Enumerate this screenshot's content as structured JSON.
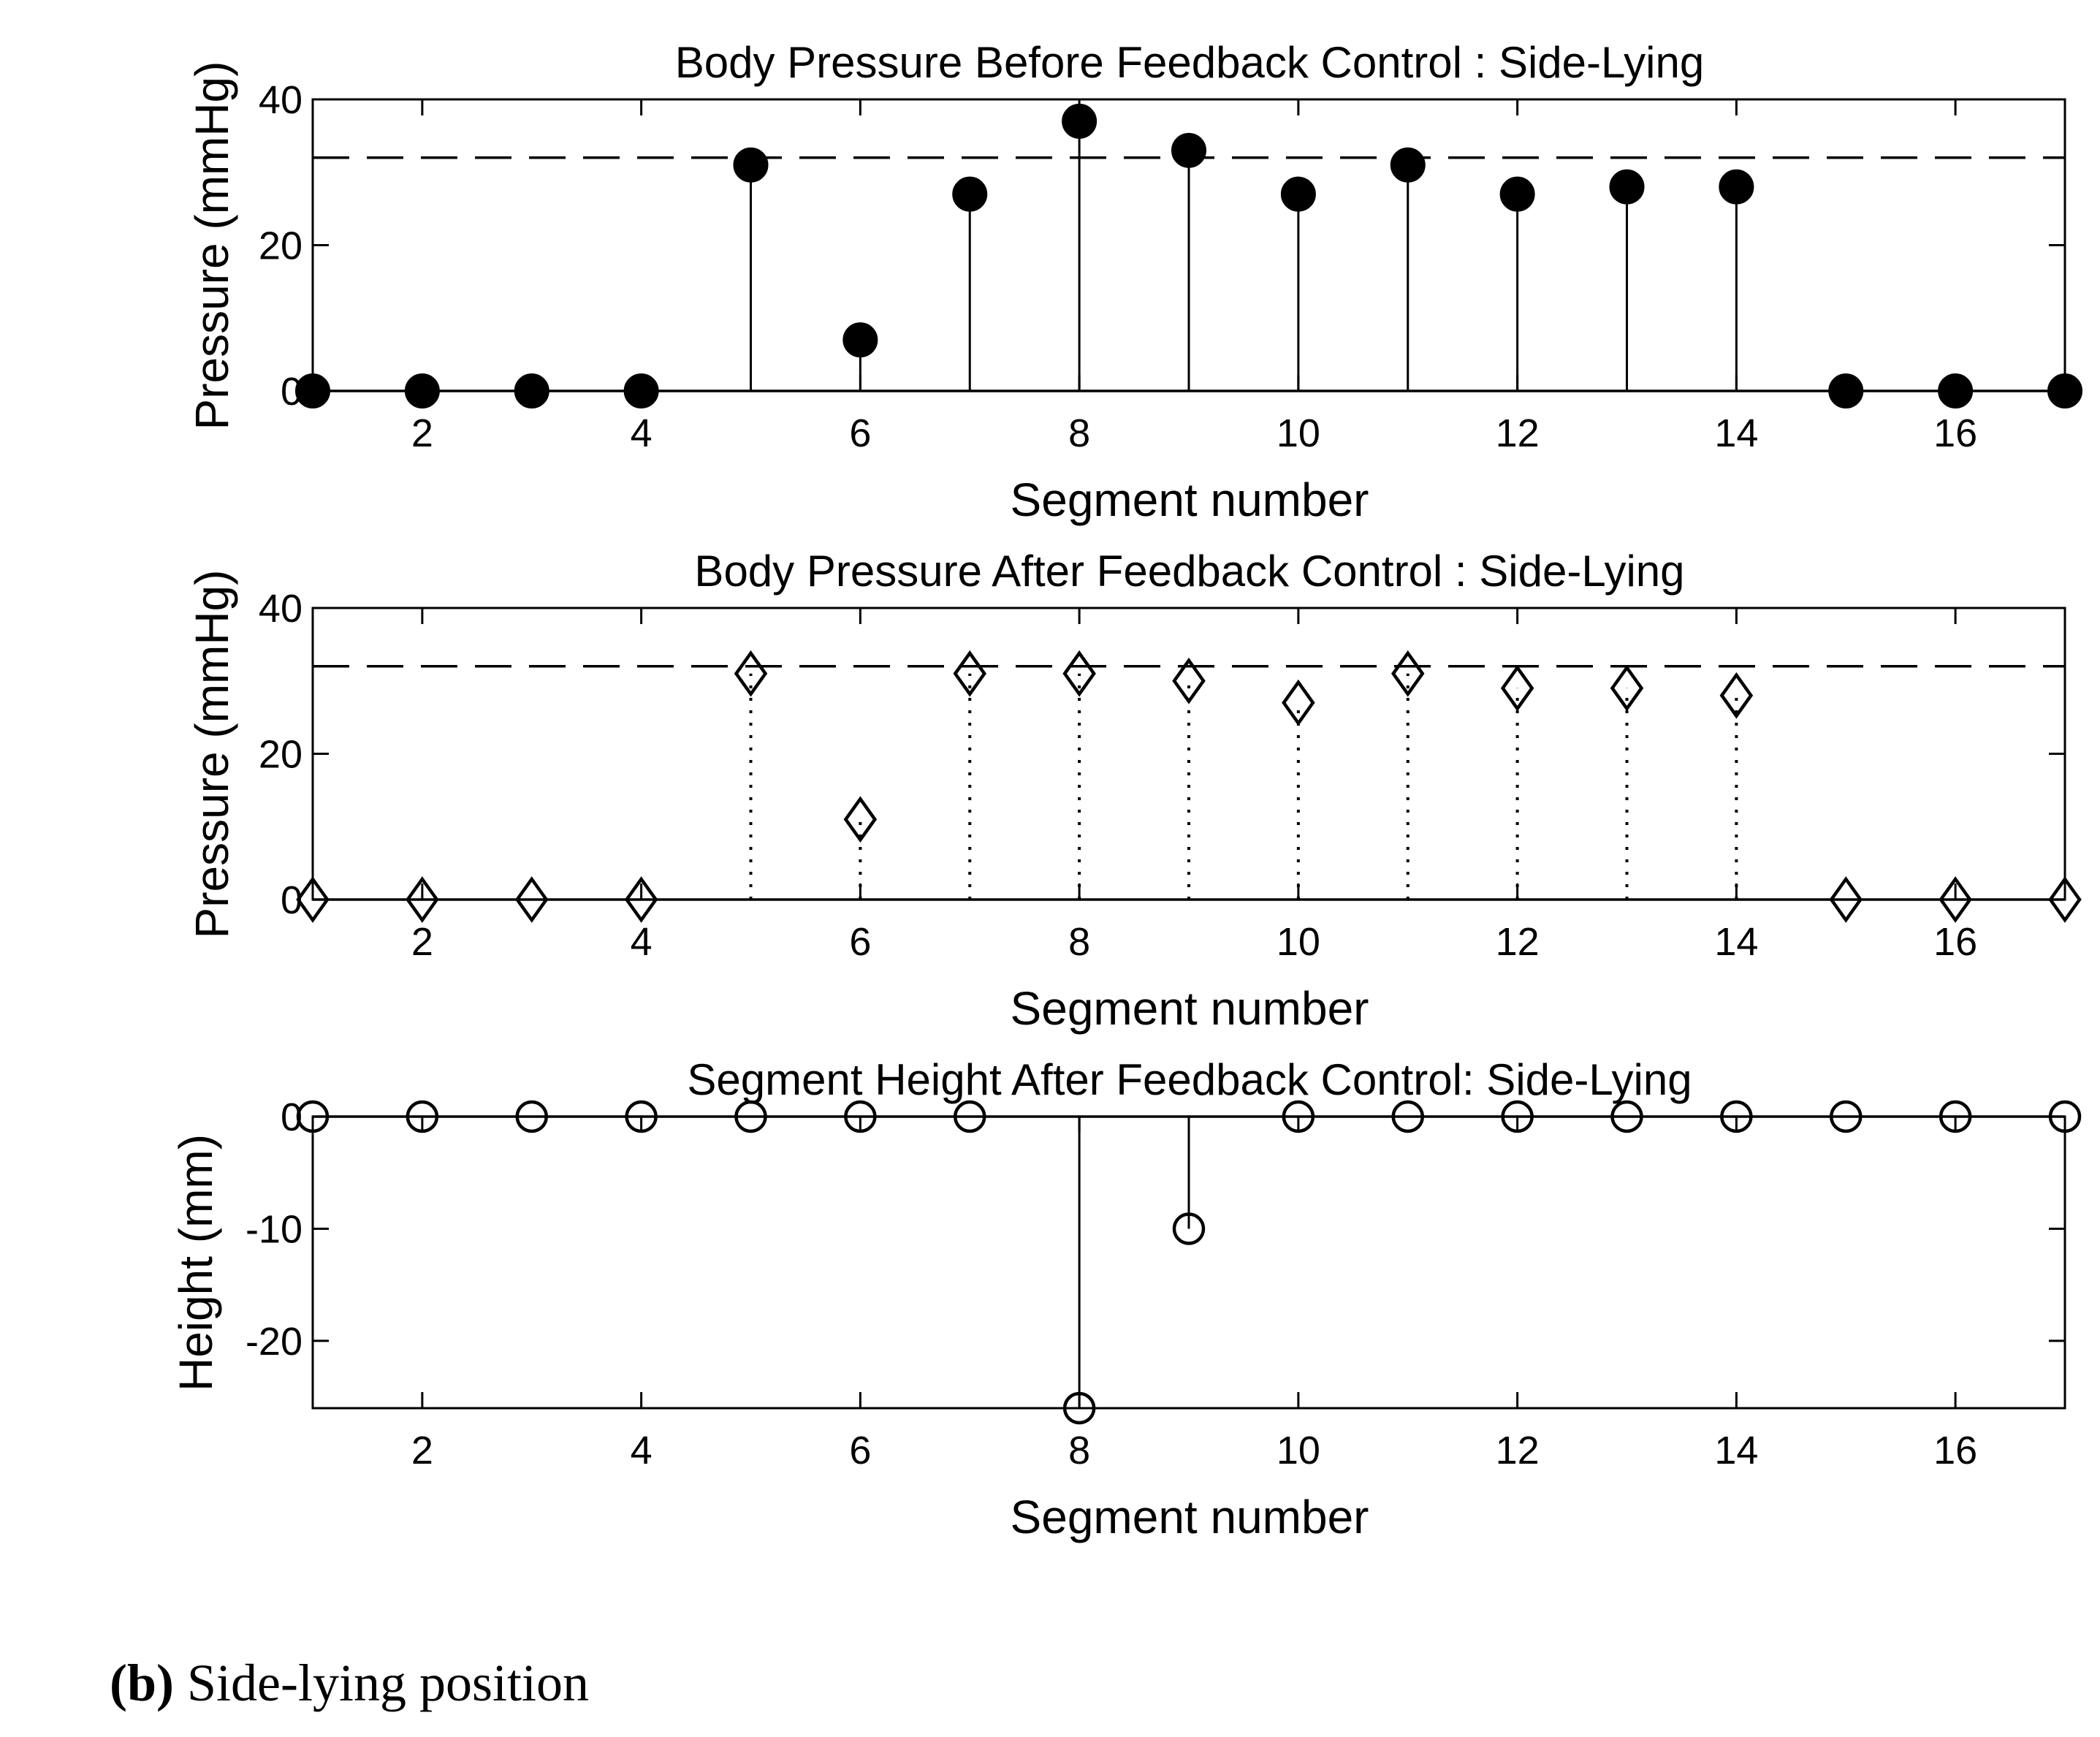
{
  "chart_data": [
    {
      "type": "stem",
      "title": "Body Pressure Before Feedback Control : Side-Lying",
      "xlabel": "Segment number",
      "ylabel": "Pressure (mmHg)",
      "xlim": [
        1,
        17
      ],
      "ylim": [
        0,
        40
      ],
      "xticks": [
        2,
        4,
        6,
        8,
        10,
        12,
        14,
        16
      ],
      "yticks": [
        0,
        20,
        40
      ],
      "marker": "filled-circle",
      "line_style": "solid",
      "threshold": 32,
      "x": [
        1,
        2,
        3,
        4,
        5,
        6,
        7,
        8,
        9,
        10,
        11,
        12,
        13,
        14,
        15,
        16,
        17
      ],
      "values": [
        0,
        0,
        0,
        0,
        31,
        7,
        27,
        37,
        33,
        27,
        31,
        27,
        28,
        28,
        0,
        0,
        0
      ]
    },
    {
      "type": "stem",
      "title": "Body Pressure After Feedback Control : Side-Lying",
      "xlabel": "Segment number",
      "ylabel": "Pressure (mmHg)",
      "xlim": [
        1,
        17
      ],
      "ylim": [
        0,
        40
      ],
      "xticks": [
        2,
        4,
        6,
        8,
        10,
        12,
        14,
        16
      ],
      "yticks": [
        0,
        20,
        40
      ],
      "marker": "open-diamond",
      "line_style": "dotted",
      "threshold": 32,
      "x": [
        1,
        2,
        3,
        4,
        5,
        6,
        7,
        8,
        9,
        10,
        11,
        12,
        13,
        14,
        15,
        16,
        17
      ],
      "values": [
        0,
        0,
        0,
        0,
        31,
        11,
        31,
        31,
        30,
        27,
        31,
        29,
        29,
        28,
        0,
        0,
        0
      ]
    },
    {
      "type": "stem",
      "title": "Segment Height After Feedback Control: Side-Lying",
      "xlabel": "Segment number",
      "ylabel": "Height (mm)",
      "xlim": [
        1,
        17
      ],
      "ylim": [
        -26,
        0
      ],
      "xticks": [
        2,
        4,
        6,
        8,
        10,
        12,
        14,
        16
      ],
      "yticks": [
        -20,
        -10,
        0
      ],
      "marker": "open-circle",
      "line_style": "solid",
      "x": [
        1,
        2,
        3,
        4,
        5,
        6,
        7,
        8,
        9,
        10,
        11,
        12,
        13,
        14,
        15,
        16,
        17
      ],
      "values": [
        0,
        0,
        0,
        0,
        0,
        0,
        0,
        -26,
        -10,
        0,
        0,
        0,
        0,
        0,
        0,
        0,
        0
      ]
    }
  ],
  "caption": {
    "label": "(b)",
    "text": "Side-lying position"
  }
}
